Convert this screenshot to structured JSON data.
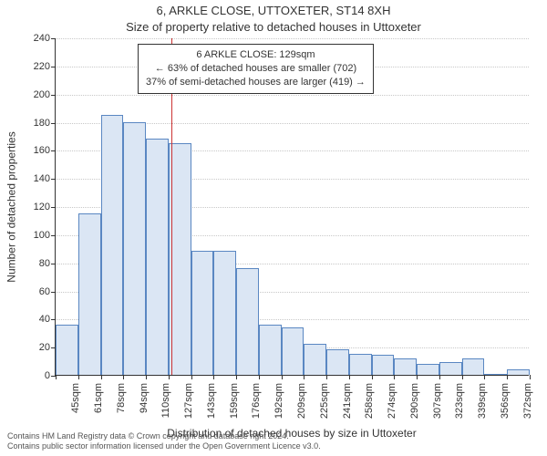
{
  "title_line1": "6, ARKLE CLOSE, UTTOXETER, ST14 8XH",
  "title_line2": "Size of property relative to detached houses in Uttoxeter",
  "yaxis_label": "Number of detached properties",
  "xaxis_label": "Distribution of detached houses by size in Uttoxeter",
  "footer_line1": "Contains HM Land Registry data © Crown copyright and database right 2024.",
  "footer_line2": "Contains public sector information licensed under the Open Government Licence v3.0.",
  "annotation": {
    "line1": "6 ARKLE CLOSE: 129sqm",
    "line2": "← 63% of detached houses are smaller (702)",
    "line3": "37% of semi-detached houses are larger (419) →"
  },
  "chart": {
    "type": "histogram",
    "ylim": [
      0,
      240
    ],
    "ytick_step": 20,
    "bar_fill": "#dbe6f4",
    "bar_stroke": "#5a87c2",
    "grid_color": "#c8c8c8",
    "background_color": "#ffffff",
    "marker_color": "#cc3333",
    "marker_x_value": 129,
    "title_fontsize": 13,
    "label_fontsize": 12,
    "tick_fontsize": 11,
    "x_categories": [
      "45sqm",
      "61sqm",
      "78sqm",
      "94sqm",
      "110sqm",
      "127sqm",
      "143sqm",
      "159sqm",
      "176sqm",
      "192sqm",
      "209sqm",
      "225sqm",
      "241sqm",
      "258sqm",
      "274sqm",
      "290sqm",
      "307sqm",
      "323sqm",
      "339sqm",
      "356sqm",
      "372sqm"
    ],
    "values": [
      36,
      115,
      185,
      180,
      168,
      165,
      88,
      88,
      76,
      36,
      34,
      22,
      18,
      15,
      14,
      12,
      8,
      9,
      12,
      0,
      4
    ]
  }
}
